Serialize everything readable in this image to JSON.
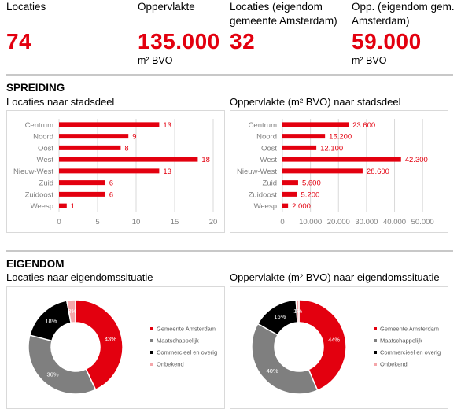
{
  "kpis": [
    {
      "label": "Locaties",
      "value": "74",
      "unit": ""
    },
    {
      "label": "Oppervlakte",
      "value": "135.000",
      "unit": "m² BVO"
    },
    {
      "label": "Locaties (eigendom gemeente Amsterdam)",
      "value": "32",
      "unit": ""
    },
    {
      "label": "Opp. (eigendom gem. Amsterdam)",
      "value": "59.000",
      "unit": "m² BVO"
    }
  ],
  "sections": {
    "spreiding": "SPREIDING",
    "eigendom": "EIGENDOM"
  },
  "colors": {
    "accent": "#e3000f",
    "pink": "#f4a6aa",
    "grey": "#7f7f7f",
    "black": "#000000",
    "grid": "#d9d9d9",
    "axis_text": "#7f7f7f"
  },
  "chart_data": [
    {
      "type": "bar",
      "orientation": "horizontal",
      "title": "Locaties naar stadsdeel",
      "categories": [
        "Centrum",
        "Noord",
        "Oost",
        "West",
        "Nieuw-West",
        "Zuid",
        "Zuidoost",
        "Weesp"
      ],
      "values": [
        13,
        9,
        8,
        18,
        13,
        6,
        6,
        1
      ],
      "value_labels": [
        "13",
        "9",
        "8",
        "18",
        "13",
        "6",
        "6",
        "1"
      ],
      "xlim": [
        0,
        20
      ],
      "xticks": [
        0,
        5,
        10,
        15,
        20
      ],
      "xtick_labels": [
        "0",
        "5",
        "10",
        "15",
        "20"
      ],
      "grid": true
    },
    {
      "type": "bar",
      "orientation": "horizontal",
      "title": "Oppervlakte (m² BVO) naar stadsdeel",
      "categories": [
        "Centrum",
        "Noord",
        "Oost",
        "West",
        "Nieuw-West",
        "Zuid",
        "Zuidoost",
        "Weesp"
      ],
      "values": [
        23600,
        15200,
        12100,
        42300,
        28600,
        5600,
        5200,
        2000
      ],
      "value_labels": [
        "23.600",
        "15.200",
        "12.100",
        "42.300",
        "28.600",
        "5.600",
        "5.200",
        "2.000"
      ],
      "xlim": [
        0,
        55000
      ],
      "xticks": [
        0,
        10000,
        20000,
        30000,
        40000,
        50000
      ],
      "xtick_labels": [
        "0",
        "10.000",
        "20.000",
        "30.000",
        "40.000",
        "50.000"
      ],
      "grid": true
    },
    {
      "type": "pie",
      "donut": true,
      "title": "Locaties naar eigendomssituatie",
      "labels": [
        "Gemeente Amsterdam",
        "Maatschappelijk",
        "Commercieel en overig",
        "Onbekend"
      ],
      "values": [
        43,
        36,
        18,
        3
      ],
      "value_labels": [
        "43%",
        "36%",
        "18%",
        "3%"
      ],
      "colors": [
        "#e3000f",
        "#7f7f7f",
        "#000000",
        "#f4a6aa"
      ],
      "legend": "right"
    },
    {
      "type": "pie",
      "donut": true,
      "title": "Oppervlakte (m² BVO) naar eigendomssituatie",
      "labels": [
        "Gemeente Amsterdam",
        "Maatschappelijk",
        "Commercieel en overig",
        "Onbekend"
      ],
      "values": [
        44,
        40,
        16,
        1
      ],
      "value_labels": [
        "44%",
        "40%",
        "16%",
        "1%"
      ],
      "colors": [
        "#e3000f",
        "#7f7f7f",
        "#000000",
        "#f4a6aa"
      ],
      "legend": "right"
    }
  ]
}
